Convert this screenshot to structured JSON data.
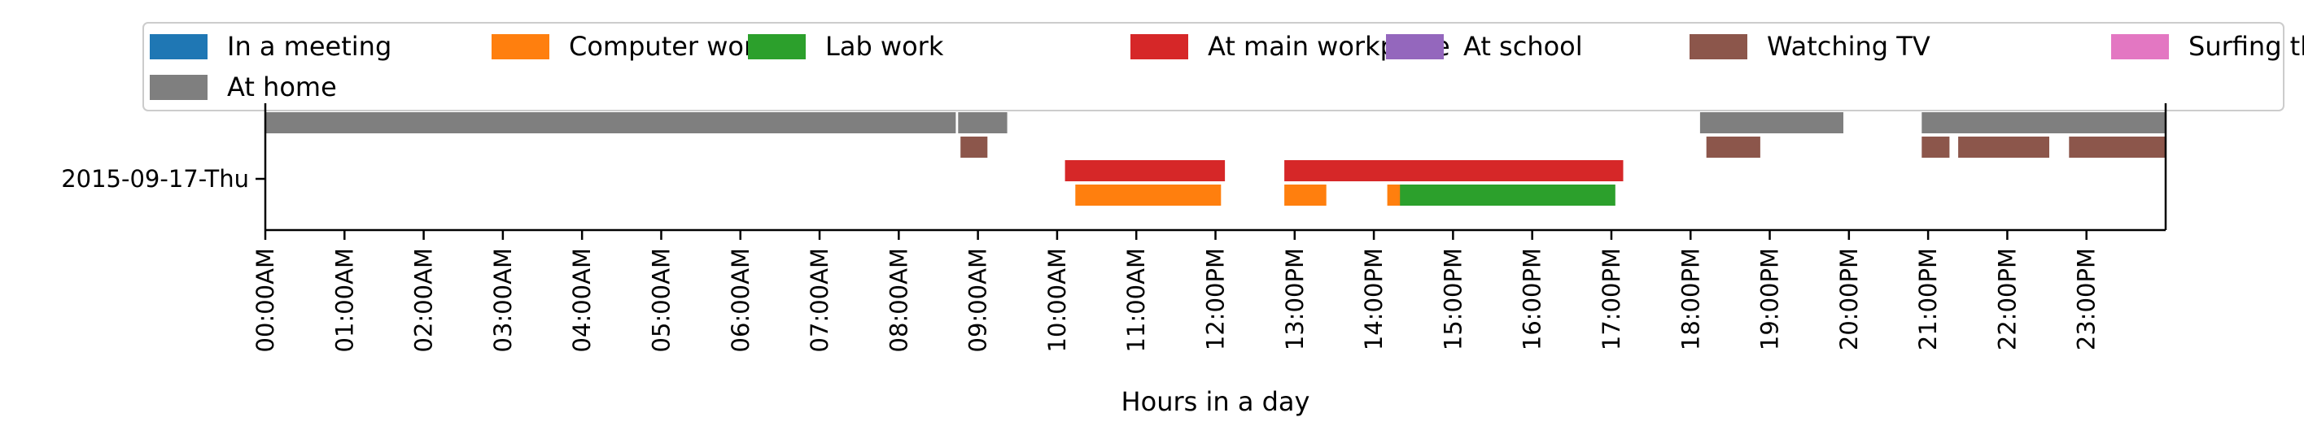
{
  "chart_data": {
    "type": "timeline",
    "xlabel": "Hours in a day",
    "ylabel": "",
    "xlim": [
      0,
      24
    ],
    "x_ticks": [
      {
        "value": 0,
        "label": "00:00AM"
      },
      {
        "value": 1,
        "label": "01:00AM"
      },
      {
        "value": 2,
        "label": "02:00AM"
      },
      {
        "value": 3,
        "label": "03:00AM"
      },
      {
        "value": 4,
        "label": "04:00AM"
      },
      {
        "value": 5,
        "label": "05:00AM"
      },
      {
        "value": 6,
        "label": "06:00AM"
      },
      {
        "value": 7,
        "label": "07:00AM"
      },
      {
        "value": 8,
        "label": "08:00AM"
      },
      {
        "value": 9,
        "label": "09:00AM"
      },
      {
        "value": 10,
        "label": "10:00AM"
      },
      {
        "value": 11,
        "label": "11:00AM"
      },
      {
        "value": 12,
        "label": "12:00PM"
      },
      {
        "value": 13,
        "label": "13:00PM"
      },
      {
        "value": 14,
        "label": "14:00PM"
      },
      {
        "value": 15,
        "label": "15:00PM"
      },
      {
        "value": 16,
        "label": "16:00PM"
      },
      {
        "value": 17,
        "label": "17:00PM"
      },
      {
        "value": 18,
        "label": "18:00PM"
      },
      {
        "value": 19,
        "label": "19:00PM"
      },
      {
        "value": 20,
        "label": "20:00PM"
      },
      {
        "value": 21,
        "label": "21:00PM"
      },
      {
        "value": 22,
        "label": "22:00PM"
      },
      {
        "value": 23,
        "label": "23:00PM"
      }
    ],
    "y_categories": [
      "2015-09-17-Thu"
    ],
    "legend_position": "top",
    "grid": false,
    "series": [
      {
        "name": "In a meeting",
        "color": "#1f77b4",
        "level": 0,
        "intervals": []
      },
      {
        "name": "Computer work",
        "color": "#ff7f0e",
        "level": 4,
        "intervals": [
          [
            10.23,
            12.07
          ],
          [
            12.87,
            13.4
          ],
          [
            14.17,
            14.38
          ]
        ]
      },
      {
        "name": "Lab work",
        "color": "#2ca02c",
        "level": 4,
        "intervals": [
          [
            14.33,
            17.05
          ]
        ]
      },
      {
        "name": "At main workplace",
        "color": "#d62728",
        "level": 3,
        "intervals": [
          [
            10.1,
            12.12
          ],
          [
            12.87,
            17.15
          ]
        ]
      },
      {
        "name": "At school",
        "color": "#9467bd",
        "level": 0,
        "intervals": []
      },
      {
        "name": "Watching TV",
        "color": "#8c564b",
        "level": 2,
        "intervals": [
          [
            8.78,
            9.12
          ],
          [
            18.2,
            18.88
          ],
          [
            20.92,
            21.27
          ],
          [
            21.38,
            22.53
          ],
          [
            22.78,
            24.0
          ]
        ]
      },
      {
        "name": "Surfing the internet",
        "color": "#e377c2",
        "level": 0,
        "intervals": []
      },
      {
        "name": "At home",
        "color": "#7f7f7f",
        "level": 1,
        "intervals": [
          [
            0.0,
            8.72
          ],
          [
            8.75,
            9.37
          ],
          [
            18.12,
            19.93
          ],
          [
            20.92,
            24.0
          ]
        ]
      }
    ]
  }
}
